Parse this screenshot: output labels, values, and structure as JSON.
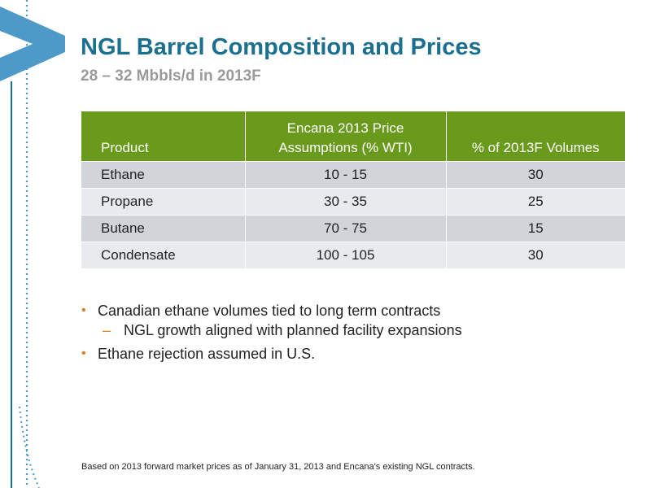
{
  "slide": {
    "title": "NGL Barrel Composition and Prices",
    "subtitle": "28 – 32 Mbbls/d in 2013F",
    "accent_colors": {
      "title": "#1b6f8f",
      "table_header": "#6a9a1c",
      "bullet": "#e07b22",
      "logo": "#4d9ac8"
    }
  },
  "table": {
    "headers": [
      "Product",
      "Encana 2013 Price Assumptions (% WTI)",
      "% of 2013F Volumes"
    ],
    "rows": [
      [
        "Ethane",
        "10 - 15",
        "30"
      ],
      [
        "Propane",
        "30 - 35",
        "25"
      ],
      [
        "Butane",
        "70 - 75",
        "15"
      ],
      [
        "Condensate",
        "100 - 105",
        "30"
      ]
    ]
  },
  "bullets": [
    {
      "level": 1,
      "marker": "•",
      "text": "Canadian ethane volumes tied to long term contracts"
    },
    {
      "level": 2,
      "marker": "–",
      "text": "NGL growth aligned with planned facility expansions"
    },
    {
      "level": 1,
      "marker": "•",
      "text": "Ethane rejection assumed in U.S."
    }
  ],
  "footnote": "Based on 2013 forward market prices as of January 31, 2013 and Encana’s existing NGL contracts.",
  "icons": [
    "chevron-logo-icon",
    "dotted-border-decoration"
  ]
}
